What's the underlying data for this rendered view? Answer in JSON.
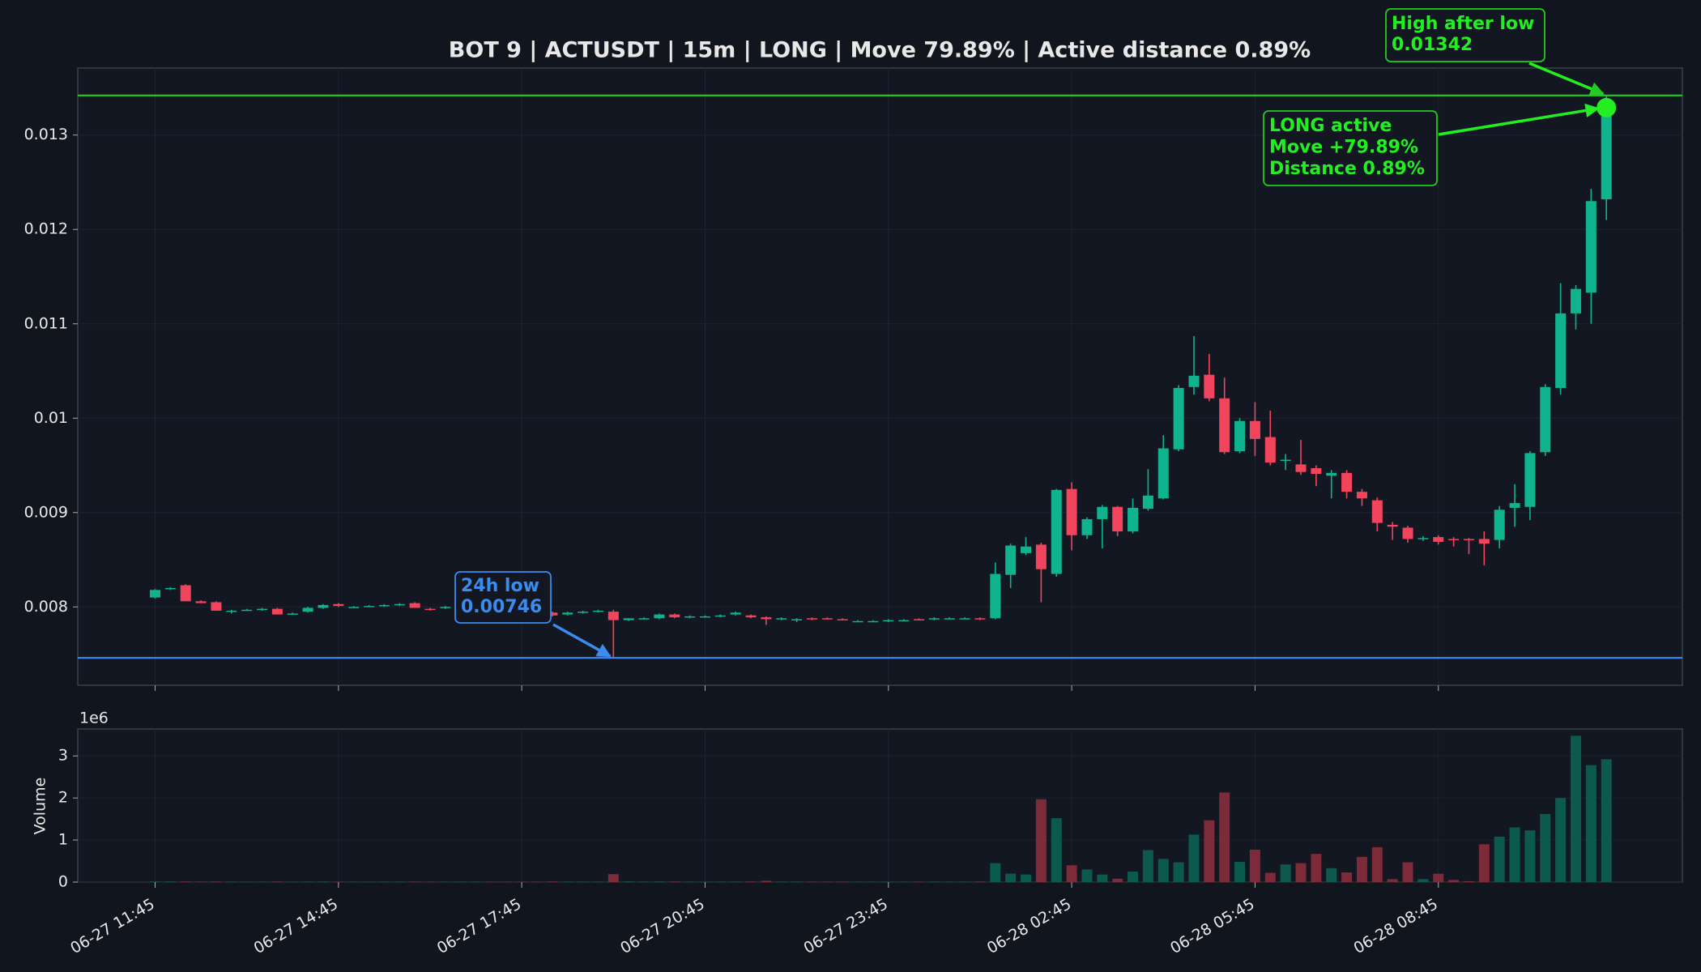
{
  "chart_data": {
    "type": "candlestick",
    "title": "BOT 9 | ACTUSDT | 15m | LONG | Move 79.89% | Active distance 0.89%",
    "categories": [
      "06-27 11:45",
      null,
      null,
      null,
      null,
      null,
      null,
      null,
      null,
      null,
      null,
      null,
      "06-27 14:45",
      null,
      null,
      null,
      null,
      null,
      null,
      null,
      null,
      null,
      null,
      null,
      "06-27 17:45",
      null,
      null,
      null,
      null,
      null,
      null,
      null,
      null,
      null,
      null,
      null,
      "06-27 20:45",
      null,
      null,
      null,
      null,
      null,
      null,
      null,
      null,
      null,
      null,
      null,
      "06-27 23:45",
      null,
      null,
      null,
      null,
      null,
      null,
      null,
      null,
      null,
      null,
      null,
      "06-28 02:45",
      null,
      null,
      null,
      null,
      null,
      null,
      null,
      null,
      null,
      null,
      null,
      "06-28 05:45",
      null,
      null,
      null,
      null,
      null,
      null,
      null,
      null,
      null,
      null,
      null,
      "06-28 08:45",
      null,
      null,
      null,
      null,
      null,
      null,
      null,
      null,
      null,
      null,
      null
    ],
    "open": [
      0.0081,
      0.00819,
      0.00823,
      0.00806,
      0.00805,
      0.00795,
      0.00797,
      0.00797,
      0.00798,
      0.00793,
      0.00795,
      0.00799,
      0.00803,
      0.008,
      0.00801,
      0.00801,
      0.00802,
      0.00804,
      0.00798,
      0.00799,
      0.008,
      0.008,
      0.00799,
      0.00798,
      0.00796,
      0.00795,
      0.00794,
      0.00792,
      0.00794,
      0.00795,
      0.00795,
      0.00786,
      0.00788,
      0.00788,
      0.00792,
      0.00789,
      0.0079,
      0.0079,
      0.00792,
      0.00791,
      0.00789,
      0.00787,
      0.00786,
      0.00788,
      0.00788,
      0.00787,
      0.00785,
      0.00785,
      0.00785,
      0.00786,
      0.00787,
      0.00787,
      0.00788,
      0.00788,
      0.00788,
      0.00788,
      0.00834,
      0.00857,
      0.00866,
      0.00835,
      0.00925,
      0.00876,
      0.00893,
      0.00906,
      0.0088,
      0.00904,
      0.00915,
      0.00967,
      0.01033,
      0.01046,
      0.01021,
      0.00965,
      0.00997,
      0.0098,
      0.00955,
      0.00951,
      0.00947,
      0.00939,
      0.00942,
      0.00922,
      0.00913,
      0.00887,
      0.00884,
      0.00872,
      0.00874,
      0.00872,
      0.00872,
      0.00872,
      0.00871,
      0.00905,
      0.00906,
      0.00964,
      0.01032,
      0.01111,
      0.01133,
      0.01232
    ],
    "high": [
      0.00819,
      0.00821,
      0.00824,
      0.00807,
      0.00806,
      0.00797,
      0.00798,
      0.00799,
      0.00799,
      0.00794,
      0.008,
      0.00803,
      0.00804,
      0.00801,
      0.00802,
      0.00803,
      0.00804,
      0.00805,
      0.00799,
      0.00801,
      0.00801,
      0.00801,
      0.008,
      0.00799,
      0.00797,
      0.00796,
      0.00795,
      0.00795,
      0.00796,
      0.00797,
      0.00797,
      0.00788,
      0.00789,
      0.00793,
      0.00793,
      0.00791,
      0.00791,
      0.00792,
      0.00795,
      0.00792,
      0.0079,
      0.00789,
      0.00788,
      0.00789,
      0.00789,
      0.00788,
      0.00786,
      0.00786,
      0.00787,
      0.00787,
      0.00788,
      0.00789,
      0.00789,
      0.00789,
      0.00789,
      0.00847,
      0.00867,
      0.00874,
      0.00868,
      0.00925,
      0.00932,
      0.00895,
      0.00908,
      0.00907,
      0.00915,
      0.00946,
      0.00982,
      0.01035,
      0.01087,
      0.01068,
      0.01043,
      0.01,
      0.01017,
      0.01008,
      0.00962,
      0.00977,
      0.0095,
      0.00945,
      0.00945,
      0.00925,
      0.00916,
      0.0089,
      0.00886,
      0.00875,
      0.00876,
      0.00874,
      0.00873,
      0.0088,
      0.00907,
      0.0093,
      0.00965,
      0.01036,
      0.01143,
      0.01141,
      0.01243,
      0.01342
    ],
    "low": [
      0.00809,
      0.00818,
      0.00806,
      0.00804,
      0.00796,
      0.00793,
      0.00796,
      0.00796,
      0.00792,
      0.00792,
      0.00794,
      0.00798,
      0.008,
      0.00799,
      0.008,
      0.008,
      0.00801,
      0.00799,
      0.00796,
      0.00798,
      0.00799,
      0.00799,
      0.00797,
      0.00796,
      0.00794,
      0.00793,
      0.0079,
      0.00791,
      0.00793,
      0.00794,
      0.00746,
      0.00785,
      0.00787,
      0.00787,
      0.00788,
      0.00788,
      0.00789,
      0.00789,
      0.00791,
      0.00788,
      0.00781,
      0.00786,
      0.00784,
      0.00786,
      0.00787,
      0.00786,
      0.00784,
      0.00784,
      0.00784,
      0.00785,
      0.00786,
      0.00786,
      0.00787,
      0.00787,
      0.00786,
      0.00787,
      0.0082,
      0.00855,
      0.00805,
      0.00832,
      0.0086,
      0.00872,
      0.00862,
      0.00875,
      0.00878,
      0.00902,
      0.00914,
      0.00965,
      0.01025,
      0.01018,
      0.00962,
      0.00963,
      0.0096,
      0.0095,
      0.00945,
      0.0094,
      0.00928,
      0.00915,
      0.00915,
      0.00907,
      0.0088,
      0.00871,
      0.00868,
      0.0087,
      0.00866,
      0.00864,
      0.00856,
      0.00844,
      0.00862,
      0.00885,
      0.00892,
      0.0096,
      0.01025,
      0.01094,
      0.011,
      0.0121
    ],
    "close": [
      0.00818,
      0.0082,
      0.00806,
      0.00804,
      0.00796,
      0.00796,
      0.00797,
      0.00798,
      0.00792,
      0.00793,
      0.00799,
      0.00802,
      0.00801,
      0.008,
      0.00801,
      0.00802,
      0.00803,
      0.00799,
      0.00797,
      0.008,
      0.008,
      0.008,
      0.00798,
      0.00797,
      0.00795,
      0.00794,
      0.00791,
      0.00794,
      0.00795,
      0.00796,
      0.00786,
      0.00788,
      0.00788,
      0.00792,
      0.00789,
      0.0079,
      0.0079,
      0.00791,
      0.00794,
      0.00789,
      0.00787,
      0.00788,
      0.00787,
      0.00787,
      0.00787,
      0.00786,
      0.00785,
      0.00785,
      0.00786,
      0.00786,
      0.00786,
      0.00788,
      0.00788,
      0.00788,
      0.00787,
      0.00835,
      0.00865,
      0.00864,
      0.0084,
      0.00924,
      0.00876,
      0.00893,
      0.00906,
      0.0088,
      0.00905,
      0.00918,
      0.00968,
      0.01032,
      0.01045,
      0.01021,
      0.00964,
      0.00997,
      0.00978,
      0.00953,
      0.00956,
      0.00943,
      0.00941,
      0.00942,
      0.00922,
      0.00915,
      0.00889,
      0.00885,
      0.00872,
      0.00873,
      0.00869,
      0.00871,
      0.00871,
      0.00867,
      0.00903,
      0.0091,
      0.00963,
      0.01033,
      0.01111,
      0.01137,
      0.0123,
      0.01329
    ],
    "volume": [
      10000,
      10000,
      12000,
      8000,
      10000,
      6000,
      5000,
      5000,
      9000,
      5000,
      7000,
      8000,
      6000,
      5000,
      5000,
      6000,
      6000,
      8000,
      5000,
      5000,
      6000,
      6000,
      5000,
      5000,
      6000,
      6000,
      12000,
      8000,
      6000,
      6000,
      190000,
      12000,
      8000,
      10000,
      9000,
      6000,
      5000,
      6000,
      8000,
      10000,
      30000,
      8000,
      8000,
      7000,
      6000,
      6000,
      5000,
      5000,
      6000,
      5000,
      6000,
      7000,
      6000,
      6000,
      8000,
      450000,
      200000,
      180000,
      1970000,
      1520000,
      400000,
      300000,
      180000,
      80000,
      250000,
      760000,
      550000,
      470000,
      1130000,
      1470000,
      2130000,
      480000,
      770000,
      220000,
      420000,
      450000,
      670000,
      330000,
      230000,
      600000,
      830000,
      70000,
      470000,
      70000,
      200000,
      50000,
      20000,
      900000,
      1080000,
      1300000,
      1230000,
      1620000,
      2000000,
      3480000,
      2780000,
      2920000
    ],
    "ylim": [
      0.00717,
      0.01371
    ],
    "yticks": [
      0.008,
      0.009,
      0.01,
      0.011,
      0.012,
      0.013
    ],
    "volume_ylim": [
      0,
      3640000
    ],
    "volume_yticks": [
      {
        "value": 0,
        "label": "0"
      },
      {
        "value": 1000000,
        "label": "1"
      },
      {
        "value": 2000000,
        "label": "2"
      },
      {
        "value": 3000000,
        "label": "3"
      }
    ],
    "volume_offset_label": "1e6",
    "volume_axis_label": "Volume",
    "grid": true,
    "up_color": "#0fb38e",
    "down_color": "#f2455d",
    "volume_up_color": "#0c5a4d",
    "volume_down_color": "#7d2a39",
    "low_level": {
      "label": "24h low",
      "value": 0.00746,
      "color": "#3b8cf0"
    },
    "high_level": {
      "label": "High after low",
      "value": 0.01342,
      "color": "#22cc22"
    },
    "active_annotation": {
      "lines": [
        "LONG active",
        "Move +79.89%",
        "Distance 0.89%"
      ],
      "color": "#22ee22"
    }
  }
}
